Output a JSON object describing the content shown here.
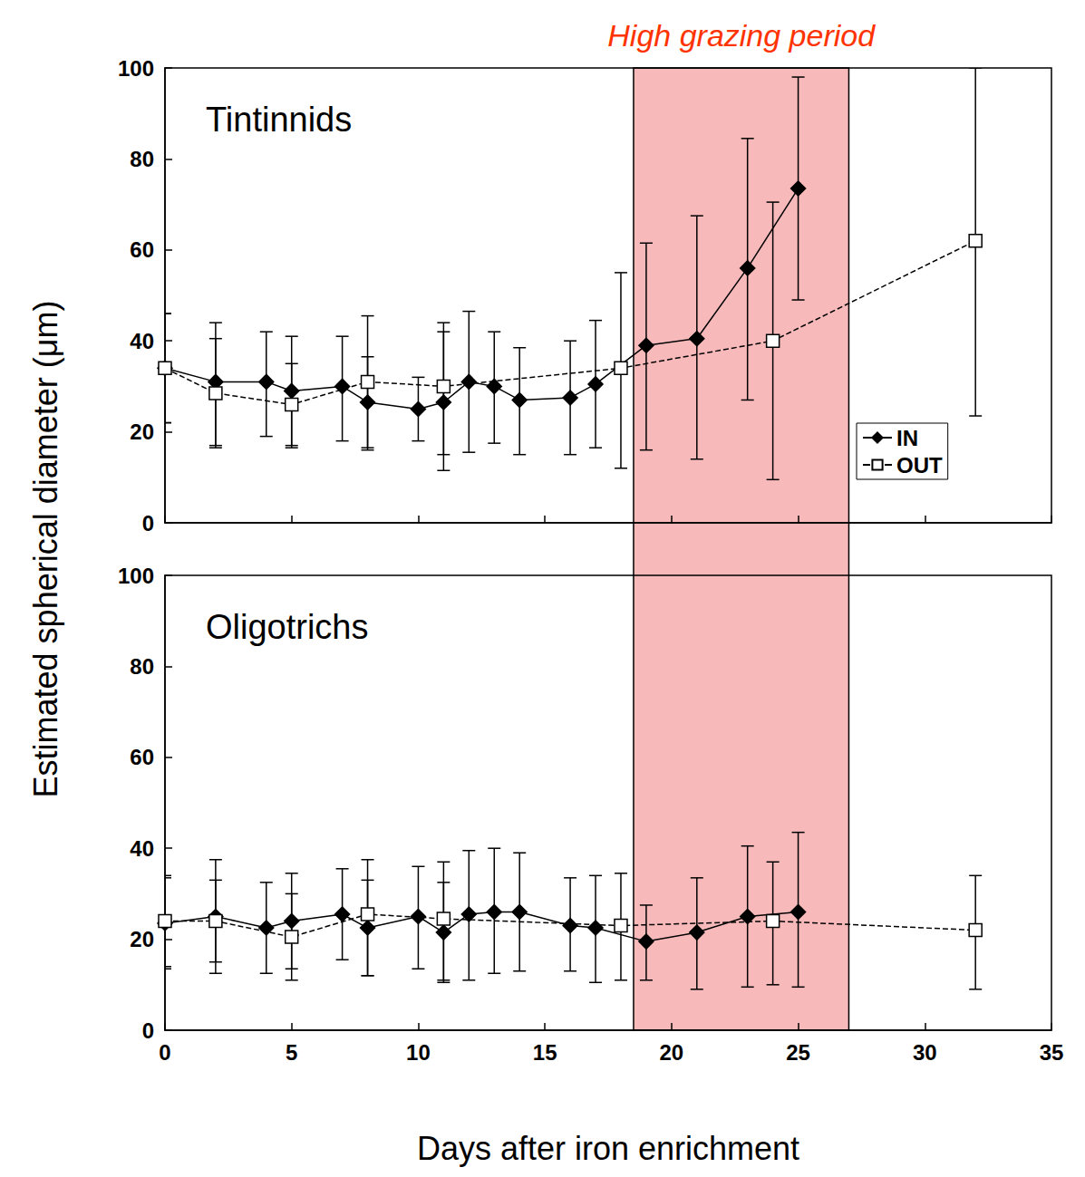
{
  "chart_data": [
    {
      "type": "line",
      "title": "Tintinnids",
      "y_label": "Estimated spherical diameter (μm)",
      "shaded": {
        "x": [
          18.5,
          27
        ],
        "label": "High grazing period",
        "color": "#f7b9b9"
      },
      "xlim": [
        0,
        35
      ],
      "xticks": [
        0,
        5,
        10,
        15,
        20,
        25,
        30,
        35
      ],
      "ylim": [
        0,
        100
      ],
      "yticks": [
        0,
        20,
        40,
        60,
        80,
        100
      ],
      "grid": false,
      "legend": "lower right",
      "tick_labels": "y",
      "series": [
        {
          "name": "IN",
          "color": "#000000",
          "marker": "diamond",
          "line_style": "solid",
          "x": [
            0,
            2,
            4,
            5,
            7,
            8,
            10,
            11,
            12,
            13,
            14,
            16,
            17,
            19,
            21,
            23,
            25
          ],
          "values": [
            34,
            31,
            31,
            29,
            30,
            26.5,
            25,
            26.5,
            31,
            30,
            27,
            27.5,
            30.5,
            39,
            40.5,
            56,
            73.5
          ],
          "error_bars": [
            [
              22,
              46
            ],
            [
              17,
              44
            ],
            [
              19,
              42
            ],
            [
              17,
              41
            ],
            [
              18,
              41
            ],
            [
              16.5,
              36.5
            ],
            [
              18,
              32
            ],
            [
              11.5,
              42
            ],
            [
              15.5,
              46.5
            ],
            [
              17.5,
              42
            ],
            [
              15,
              38.5
            ],
            [
              15,
              40
            ],
            [
              16.5,
              44.5
            ],
            [
              16,
              61.5
            ],
            [
              14,
              67.5
            ],
            [
              27,
              84.5
            ],
            [
              49,
              98
            ]
          ]
        },
        {
          "name": "OUT",
          "color": "#000000",
          "marker": "open_square",
          "line_style": "dashed",
          "x": [
            0,
            2,
            5,
            8,
            11,
            18,
            24,
            32
          ],
          "values": [
            34,
            28.5,
            26,
            31,
            30,
            34,
            40,
            62
          ],
          "error_bars": [
            [
              22,
              46
            ],
            [
              16.5,
              40.5
            ],
            [
              16.5,
              35
            ],
            [
              16,
              45.5
            ],
            [
              15,
              44
            ],
            [
              12,
              55
            ],
            [
              9.5,
              70.5
            ],
            [
              23.5,
              100
            ]
          ]
        }
      ]
    },
    {
      "type": "line",
      "title": "Oligotrichs",
      "x_label": "Days after iron enrichment",
      "shaded": {
        "x": [
          18.5,
          27
        ],
        "color": "#f7b9b9"
      },
      "xlim": [
        0,
        35
      ],
      "xticks": [
        0,
        5,
        10,
        15,
        20,
        25,
        30,
        35
      ],
      "ylim": [
        0,
        100
      ],
      "yticks": [
        0,
        20,
        40,
        60,
        80,
        100
      ],
      "grid": false,
      "tick_labels": true,
      "series": [
        {
          "name": "IN",
          "color": "#000000",
          "marker": "diamond",
          "line_style": "solid",
          "x": [
            0,
            2,
            4,
            5,
            7,
            8,
            10,
            11,
            12,
            13,
            14,
            16,
            17,
            19,
            21,
            23,
            25
          ],
          "values": [
            23.5,
            25,
            22.5,
            24,
            25.5,
            22.5,
            25,
            21.5,
            25.5,
            26,
            26,
            23,
            22.5,
            19.5,
            21.5,
            25,
            26
          ],
          "error_bars": [
            [
              13.5,
              33.5
            ],
            [
              12.5,
              37.5
            ],
            [
              12.5,
              32.5
            ],
            [
              13.5,
              34.5
            ],
            [
              15.5,
              35.5
            ],
            [
              12,
              33
            ],
            [
              13.5,
              36
            ],
            [
              10.5,
              32.5
            ],
            [
              11,
              39.5
            ],
            [
              12.5,
              40
            ],
            [
              13,
              39
            ],
            [
              13,
              33.5
            ],
            [
              10.5,
              34
            ],
            [
              11,
              27.5
            ],
            [
              9,
              33.5
            ],
            [
              9.5,
              40.5
            ],
            [
              9.5,
              43.5
            ]
          ]
        },
        {
          "name": "OUT",
          "color": "#000000",
          "marker": "open_square",
          "line_style": "dashed",
          "x": [
            0,
            2,
            5,
            8,
            11,
            18,
            24,
            32
          ],
          "values": [
            24,
            24,
            20.5,
            25.5,
            24.5,
            23,
            24,
            22
          ],
          "error_bars": [
            [
              14,
              34
            ],
            [
              15,
              33
            ],
            [
              11,
              30
            ],
            [
              12,
              37.5
            ],
            [
              11,
              37
            ],
            [
              11,
              34.5
            ],
            [
              10,
              37
            ],
            [
              9,
              34
            ]
          ]
        }
      ]
    }
  ]
}
